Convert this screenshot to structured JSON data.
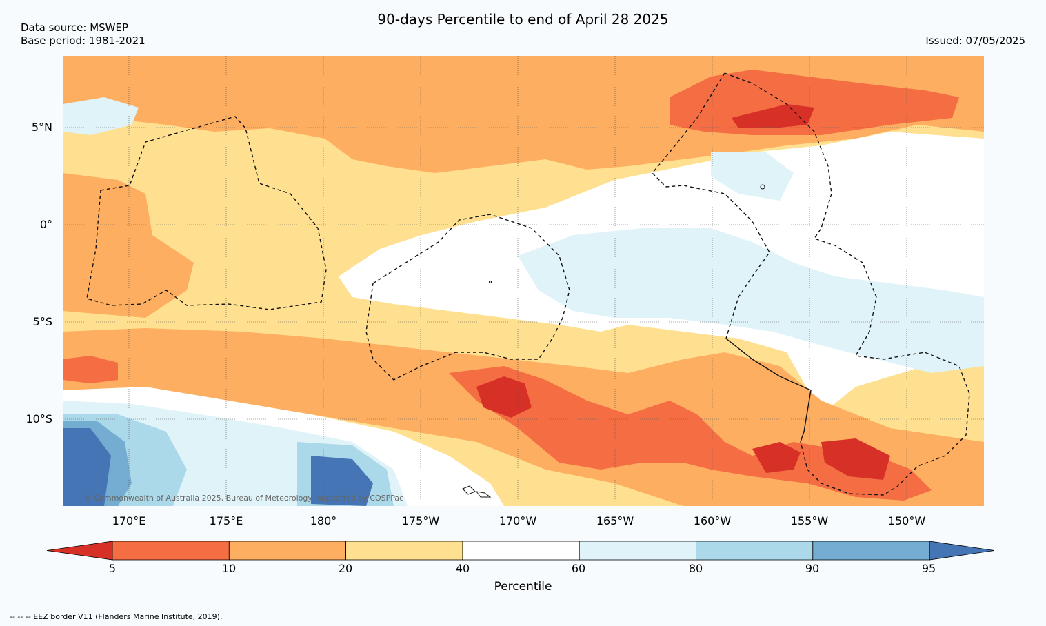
{
  "title": "90-days Percentile to end of April 28 2025",
  "source_line": "Data source: MSWEP",
  "base_line": "Base period: 1981-2021",
  "issued": "Issued: 07/05/2025",
  "lat_labels": [
    "5°N",
    "0°",
    "5°S",
    "10°S"
  ],
  "lon_labels": [
    "170°E",
    "175°E",
    "180°",
    "175°W",
    "170°W",
    "165°W",
    "160°W",
    "155°W",
    "150°W"
  ],
  "copyright": "© Commonwealth of Australia 2025, Bureau of Meteorology, supported by COSPPac",
  "legend": {
    "title": "Percentile",
    "ticks": [
      "5",
      "10",
      "20",
      "40",
      "60",
      "80",
      "90",
      "95"
    ],
    "colors": [
      "#d73027",
      "#f46d43",
      "#fdae61",
      "#fee090",
      "#ffffff",
      "#e0f3f8",
      "#abd9e9",
      "#74add1",
      "#4575b4"
    ]
  },
  "footer": "--  --  -- EEZ border V11 (Flanders Marine Institute, 2019)."
}
